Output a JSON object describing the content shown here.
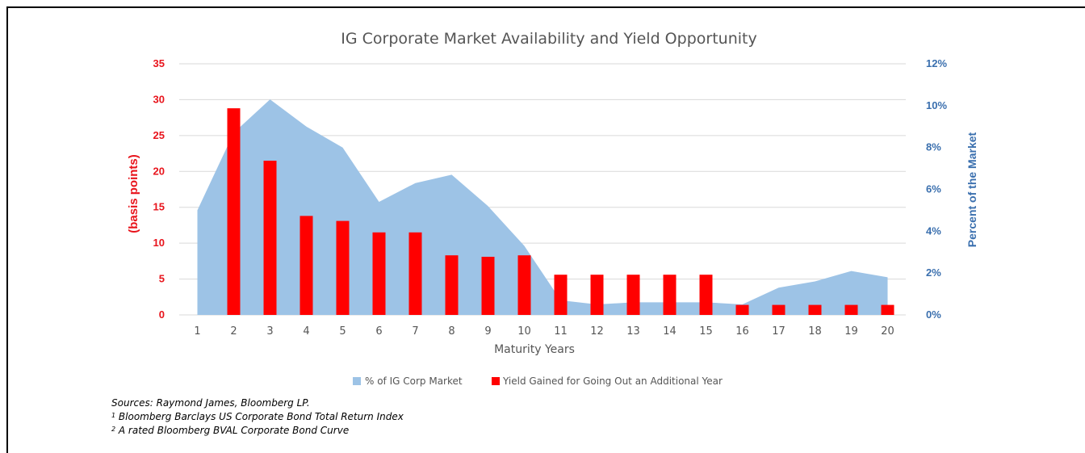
{
  "chart_data": {
    "type": "bar+area",
    "title": "IG Corporate Market Availability and Yield Opportunity",
    "xlabel": "Maturity Years",
    "categories": [
      "1",
      "2",
      "3",
      "4",
      "5",
      "6",
      "7",
      "8",
      "9",
      "10",
      "11",
      "12",
      "13",
      "14",
      "15",
      "16",
      "17",
      "18",
      "19",
      "20"
    ],
    "left_axis": {
      "label": "(basis points)",
      "ticks": [
        "0",
        "5",
        "10",
        "15",
        "20",
        "25",
        "30",
        "35"
      ],
      "ylim": [
        0,
        35
      ],
      "color": "#e8141c"
    },
    "right_axis": {
      "label": "Percent of the Market",
      "ticks": [
        "0%",
        "2%",
        "4%",
        "6%",
        "8%",
        "10%",
        "12%"
      ],
      "ylim": [
        0,
        12
      ],
      "color": "#3a6fae"
    },
    "series": [
      {
        "name": "% of IG Corp Market",
        "type": "area",
        "axis": "right",
        "color": "#9dc3e6",
        "values": [
          5.0,
          8.7,
          10.3,
          9.0,
          8.0,
          5.4,
          6.3,
          6.7,
          5.2,
          3.3,
          0.7,
          0.5,
          0.6,
          0.6,
          0.6,
          0.5,
          1.3,
          1.6,
          2.1,
          1.8
        ]
      },
      {
        "name": "Yield Gained for Going Out an Additional Year",
        "type": "bar",
        "axis": "left",
        "color": "#ff0000",
        "values": [
          null,
          28.8,
          21.5,
          13.8,
          13.1,
          11.5,
          11.5,
          8.3,
          8.1,
          8.3,
          5.6,
          5.6,
          5.6,
          5.6,
          5.6,
          1.4,
          1.4,
          1.4,
          1.4,
          1.4
        ]
      }
    ],
    "legend_position": "bottom",
    "grid": true
  },
  "notes": {
    "sources": "Sources: Raymond James, Bloomberg LP.",
    "note1_mark": "1",
    "note1": " Bloomberg Barclays US Corporate Bond Total Return Index",
    "note2_mark": "2",
    "note2": " A rated Bloomberg BVAL Corporate Bond Curve"
  }
}
